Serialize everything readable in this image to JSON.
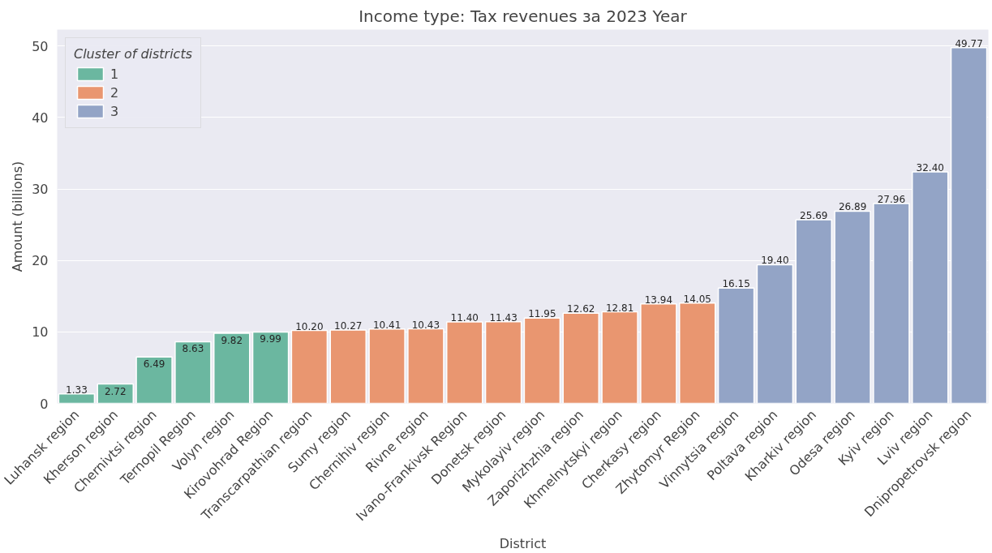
{
  "chart_data": {
    "type": "bar",
    "title": "Income type: Tax revenues за 2023 Year",
    "xlabel": "District",
    "ylabel": "Amount (billions)",
    "legend_title": "Cluster of districts",
    "categories": [
      "Luhansk region",
      "Kherson region",
      "Chernivtsi region",
      "Ternopil Region",
      "Volyn region",
      "Kirovohrad Region",
      "Transcarpathian region",
      "Sumy region",
      "Chernihiv region",
      "Rivne region",
      "Ivano-Frankivsk Region",
      "Donetsk region",
      "Mykolayiv region",
      "Zaporizhzhia region",
      "Khmelnytskyi region",
      "Cherkasy region",
      "Zhytomyr Region",
      "Vinnytsia region",
      "Poltava region",
      "Kharkiv region",
      "Odesa region",
      "Kyiv region",
      "Lviv region",
      "Dnipropetrovsk region"
    ],
    "series": [
      {
        "name": "1",
        "color": "#6bb7a0",
        "values": [
          1.33,
          2.72,
          6.49,
          8.63,
          9.82,
          9.99,
          null,
          null,
          null,
          null,
          null,
          null,
          null,
          null,
          null,
          null,
          null,
          null,
          null,
          null,
          null,
          null,
          null,
          null
        ],
        "value_labels": [
          "1.33",
          "2.72",
          "6.49",
          "8.63",
          "9.82",
          "9.99",
          null,
          null,
          null,
          null,
          null,
          null,
          null,
          null,
          null,
          null,
          null,
          null,
          null,
          null,
          null,
          null,
          null,
          null
        ]
      },
      {
        "name": "2",
        "color": "#e99670",
        "values": [
          null,
          null,
          null,
          null,
          null,
          null,
          10.2,
          10.27,
          10.41,
          10.43,
          11.4,
          11.43,
          11.95,
          12.62,
          12.81,
          13.94,
          14.05,
          null,
          null,
          null,
          null,
          null,
          null,
          null
        ],
        "value_labels": [
          null,
          null,
          null,
          null,
          null,
          null,
          "10.20",
          "10.27",
          "10.41",
          "10.43",
          "11.40",
          "11.43",
          "11.95",
          "12.62",
          "12.81",
          "13.94",
          "14.05",
          null,
          null,
          null,
          null,
          null,
          null,
          null
        ]
      },
      {
        "name": "3",
        "color": "#93a4c6",
        "values": [
          null,
          null,
          null,
          null,
          null,
          null,
          null,
          null,
          null,
          null,
          null,
          null,
          null,
          null,
          null,
          null,
          null,
          16.15,
          19.4,
          25.69,
          26.89,
          27.96,
          32.4,
          49.77
        ],
        "value_labels": [
          null,
          null,
          null,
          null,
          null,
          null,
          null,
          null,
          null,
          null,
          null,
          null,
          null,
          null,
          null,
          null,
          null,
          "16.15",
          "19.40",
          "25.69",
          "26.89",
          "27.96",
          "32.40",
          "49.77"
        ]
      }
    ],
    "ylim": [
      0,
      52.3
    ],
    "yticks": [
      0,
      10,
      20,
      30,
      40,
      50
    ],
    "grid": "y",
    "legend": "top left"
  }
}
